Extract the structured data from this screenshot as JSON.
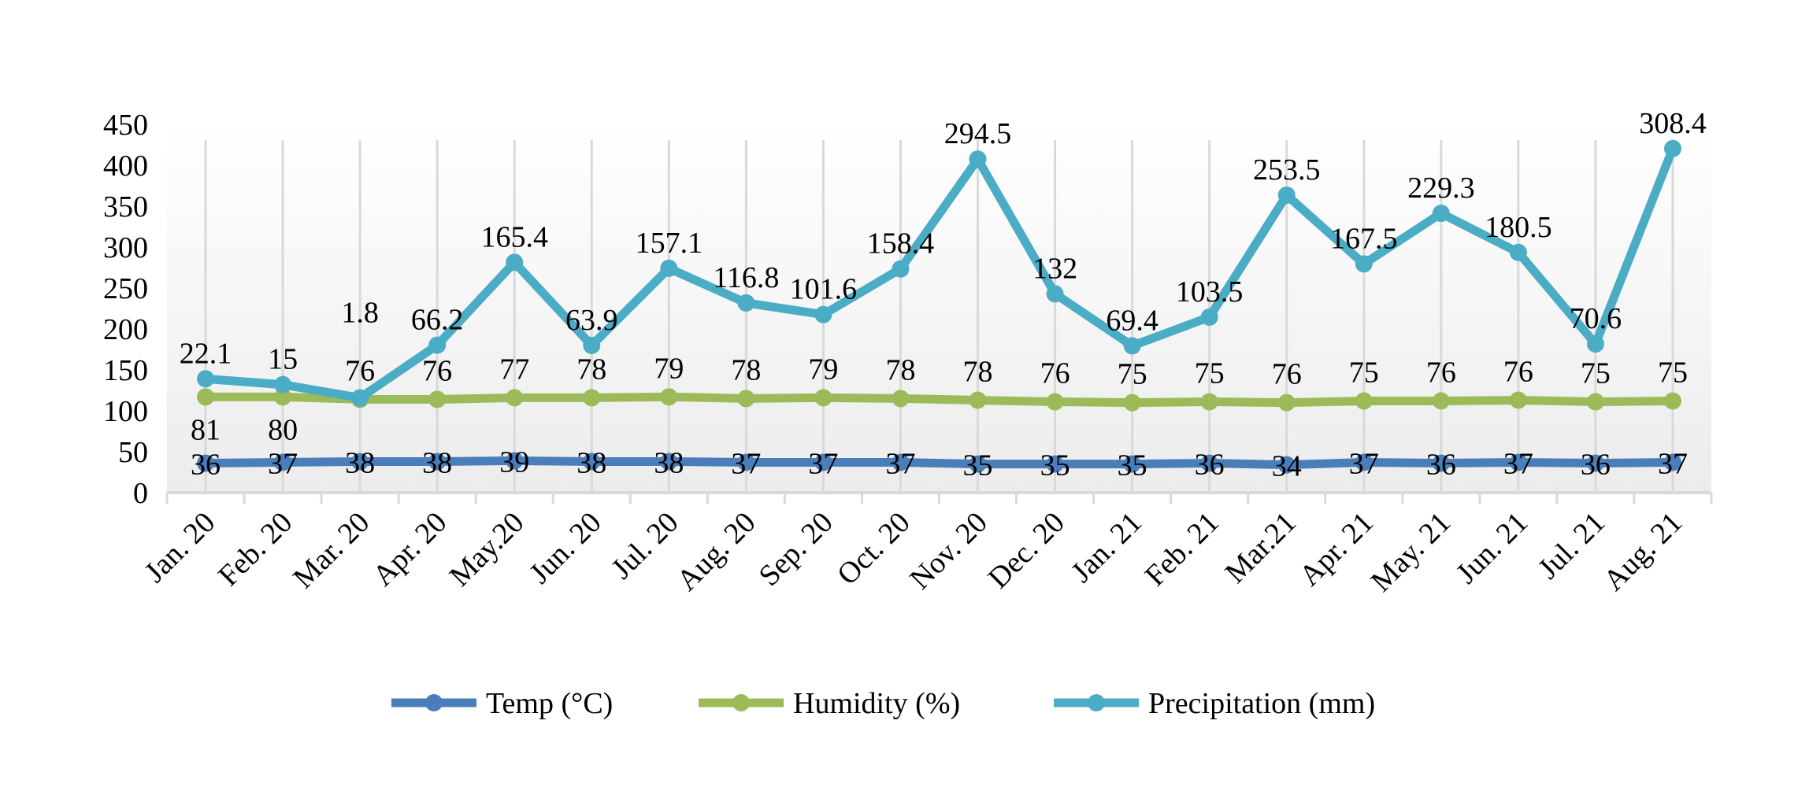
{
  "chart_data": {
    "type": "line",
    "stacked": true,
    "title": "",
    "xlabel": "",
    "ylabel": "",
    "ylim": [
      0,
      450
    ],
    "yticks": [
      0,
      50,
      100,
      150,
      200,
      250,
      300,
      350,
      400,
      450
    ],
    "grid": "vertical",
    "legend_position": "bottom",
    "categories": [
      "Jan. 20",
      "Feb. 20",
      "Mar. 20",
      "Apr. 20",
      "May.20",
      "Jun. 20",
      "Jul. 20",
      "Aug. 20",
      "Sep. 20",
      "Oct. 20",
      "Nov. 20",
      "Dec. 20",
      "Jan. 21",
      "Feb. 21",
      "Mar.21",
      "Apr. 21",
      "May. 21",
      "Jun. 21",
      "Jul. 21",
      "Aug. 21"
    ],
    "series": [
      {
        "name": "Temp (°C)",
        "color": "#4a7ebb",
        "values": [
          36,
          37,
          38,
          38,
          39,
          38,
          38,
          37,
          37,
          37,
          35,
          35,
          35,
          36,
          34,
          37,
          36,
          37,
          36,
          37
        ]
      },
      {
        "name": "Humidity (%)",
        "color": "#9bbb59",
        "values": [
          81,
          80,
          76,
          76,
          77,
          78,
          79,
          78,
          79,
          78,
          78,
          76,
          75,
          75,
          76,
          75,
          76,
          76,
          75,
          75
        ]
      },
      {
        "name": "Precipitation (mm)",
        "color": "#4bacc6",
        "values": [
          22.1,
          15,
          1.8,
          66.2,
          165.4,
          63.9,
          157.1,
          116.8,
          101.6,
          158.4,
          294.5,
          132,
          69.4,
          103.5,
          253.5,
          167.5,
          229.3,
          180.5,
          70.6,
          308.4
        ]
      }
    ]
  }
}
